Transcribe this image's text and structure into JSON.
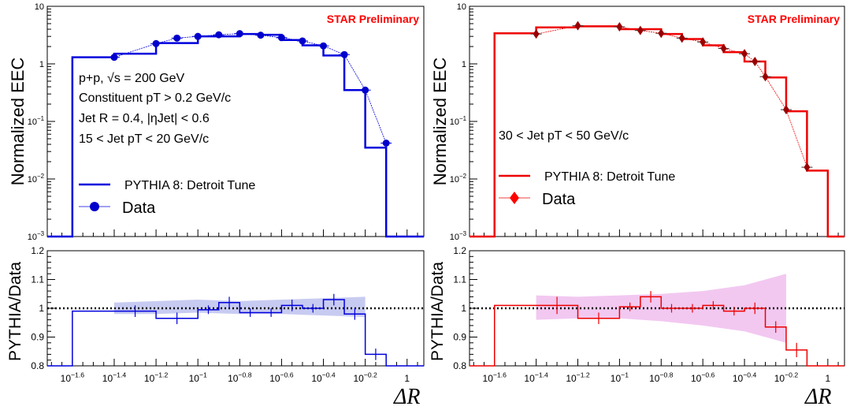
{
  "figure": {
    "xlabel": "ΔR",
    "ratio_ylabel": "PYTHIA/Data",
    "main_ylabel": "Normalized EEC",
    "watermark": "STAR Preliminary",
    "x_ticks": [
      {
        "v": -1.6,
        "label": "10",
        "exp": "−1.6"
      },
      {
        "v": -1.4,
        "label": "10",
        "exp": "−1.4"
      },
      {
        "v": -1.2,
        "label": "10",
        "exp": "−1.2"
      },
      {
        "v": -1.0,
        "label": "10",
        "exp": "−1"
      },
      {
        "v": -0.8,
        "label": "10",
        "exp": "−0.8"
      },
      {
        "v": -0.6,
        "label": "10",
        "exp": "−0.6"
      },
      {
        "v": -0.4,
        "label": "10",
        "exp": "−0.4"
      },
      {
        "v": -0.2,
        "label": "10",
        "exp": "−0.2"
      },
      {
        "v": 0.0,
        "label": "1",
        "exp": ""
      }
    ],
    "y_ticks_main": [
      {
        "v": -3,
        "label": "10",
        "exp": "−3"
      },
      {
        "v": -2,
        "label": "10",
        "exp": "−2"
      },
      {
        "v": -1,
        "label": "10",
        "exp": "−1"
      },
      {
        "v": 0,
        "label": "1",
        "exp": ""
      },
      {
        "v": 1,
        "label": "10",
        "exp": ""
      }
    ],
    "y_ticks_ratio": [
      "0.8",
      "0.9",
      "1",
      "1.1",
      "1.2"
    ]
  },
  "chart_data": [
    {
      "type": "line",
      "panel": "left-top",
      "color": "#0000dd",
      "marker": "circle",
      "y_scale": "log",
      "ylabel": "Normalized EEC",
      "xlim_log10": [
        -1.72,
        0.08
      ],
      "ylim": [
        0.001,
        10
      ],
      "annotations": [
        "p+p, √s = 200 GeV",
        "Constituent pT > 0.2 GeV/c",
        "Jet R = 0.4, |ηJet| < 0.6",
        "15 < Jet pT < 20 GeV/c"
      ],
      "legend": [
        "PYTHIA 8: Detroit Tune",
        "Data"
      ],
      "pythia_bin_edges_log10": [
        -1.72,
        -1.6,
        -1.4,
        -1.2,
        -1.0,
        -0.8,
        -0.7,
        -0.6,
        -0.5,
        -0.4,
        -0.3,
        -0.2,
        -0.1,
        0.0,
        0.08
      ],
      "pythia_values": [
        0.001,
        1.3,
        1.5,
        2.3,
        3.0,
        3.3,
        3.2,
        2.6,
        2.1,
        1.4,
        0.35,
        0.035,
        0.001,
        0.001
      ],
      "data_x_log10": [
        -1.4,
        -1.2,
        -1.1,
        -1.0,
        -0.9,
        -0.8,
        -0.7,
        -0.6,
        -0.5,
        -0.4,
        -0.3,
        -0.2,
        -0.1
      ],
      "data_values": [
        1.3,
        2.25,
        2.8,
        3.0,
        3.2,
        3.35,
        3.15,
        2.85,
        2.5,
        2.05,
        1.45,
        0.35,
        0.042
      ]
    },
    {
      "type": "line",
      "panel": "right-top",
      "color": "#ee0000",
      "marker": "diamond",
      "y_scale": "log",
      "ylabel": "Normalized EEC",
      "xlim_log10": [
        -1.72,
        0.08
      ],
      "ylim": [
        0.001,
        10
      ],
      "annotations": [
        "30 < Jet pT < 50 GeV/c"
      ],
      "legend": [
        "PYTHIA 8: Detroit Tune",
        "Data"
      ],
      "pythia_bin_edges_log10": [
        -1.72,
        -1.6,
        -1.4,
        -1.2,
        -1.0,
        -0.8,
        -0.7,
        -0.6,
        -0.5,
        -0.4,
        -0.3,
        -0.2,
        -0.1,
        0.0,
        0.08
      ],
      "pythia_values": [
        0.001,
        3.4,
        4.3,
        4.5,
        4.0,
        3.3,
        2.7,
        2.1,
        1.6,
        1.1,
        0.58,
        0.15,
        0.014,
        0.001
      ],
      "data_x_log10": [
        -1.4,
        -1.2,
        -1.0,
        -0.9,
        -0.8,
        -0.7,
        -0.6,
        -0.5,
        -0.4,
        -0.35,
        -0.3,
        -0.2,
        -0.1
      ],
      "data_values": [
        3.3,
        4.6,
        4.4,
        3.8,
        3.4,
        2.8,
        2.4,
        1.85,
        1.5,
        1.1,
        0.6,
        0.16,
        0.016
      ]
    },
    {
      "type": "line",
      "panel": "left-bottom",
      "color": "#0000dd",
      "ylabel": "PYTHIA/Data",
      "xlabel": "ΔR",
      "xlim_log10": [
        -1.72,
        0.08
      ],
      "ylim": [
        0.8,
        1.2
      ],
      "reference_line": 1.0,
      "ratio_bin_edges_log10": [
        -1.72,
        -1.6,
        -1.4,
        -1.2,
        -1.0,
        -0.9,
        -0.8,
        -0.7,
        -0.6,
        -0.5,
        -0.4,
        -0.3,
        -0.2,
        -0.1,
        0.0,
        0.08
      ],
      "ratio_values": [
        0.8,
        0.99,
        0.99,
        0.965,
        0.995,
        1.02,
        0.985,
        0.985,
        1.01,
        1.0,
        1.03,
        0.98,
        0.84,
        0.8,
        0.8
      ],
      "ratio_errors": [
        0,
        0,
        0.02,
        0.02,
        0.015,
        0.02,
        0.015,
        0.015,
        0.02,
        0.015,
        0.02,
        0.02,
        0.02,
        0,
        0
      ],
      "band_x_log10": [
        -1.4,
        -1.2,
        -1.0,
        -0.8,
        -0.6,
        -0.4,
        -0.2
      ],
      "band_upper": [
        1.02,
        1.025,
        1.03,
        1.025,
        1.03,
        1.035,
        1.04
      ],
      "band_lower": [
        0.98,
        0.98,
        0.985,
        0.98,
        0.98,
        0.975,
        0.97
      ]
    },
    {
      "type": "line",
      "panel": "right-bottom",
      "color": "#ee0000",
      "ylabel": "PYTHIA/Data",
      "xlabel": "ΔR",
      "xlim_log10": [
        -1.72,
        0.08
      ],
      "ylim": [
        0.8,
        1.2
      ],
      "reference_line": 1.0,
      "ratio_bin_edges_log10": [
        -1.72,
        -1.6,
        -1.4,
        -1.2,
        -1.0,
        -0.9,
        -0.8,
        -0.7,
        -0.6,
        -0.5,
        -0.4,
        -0.3,
        -0.2,
        -0.1,
        0.0,
        0.08
      ],
      "ratio_values": [
        0.8,
        1.01,
        1.01,
        0.965,
        1.005,
        1.04,
        1.0,
        1.0,
        1.01,
        0.99,
        1.0,
        0.935,
        0.855,
        0.8,
        0.8
      ],
      "ratio_errors": [
        0,
        0,
        0.03,
        0.02,
        0.015,
        0.02,
        0.015,
        0.015,
        0.015,
        0.015,
        0.02,
        0.02,
        0.025,
        0,
        0
      ],
      "band_x_log10": [
        -1.4,
        -1.2,
        -1.0,
        -0.8,
        -0.6,
        -0.4,
        -0.2
      ],
      "band_upper": [
        1.045,
        1.04,
        1.045,
        1.05,
        1.06,
        1.08,
        1.12
      ],
      "band_lower": [
        0.96,
        0.965,
        0.965,
        0.955,
        0.94,
        0.92,
        0.88
      ]
    }
  ]
}
